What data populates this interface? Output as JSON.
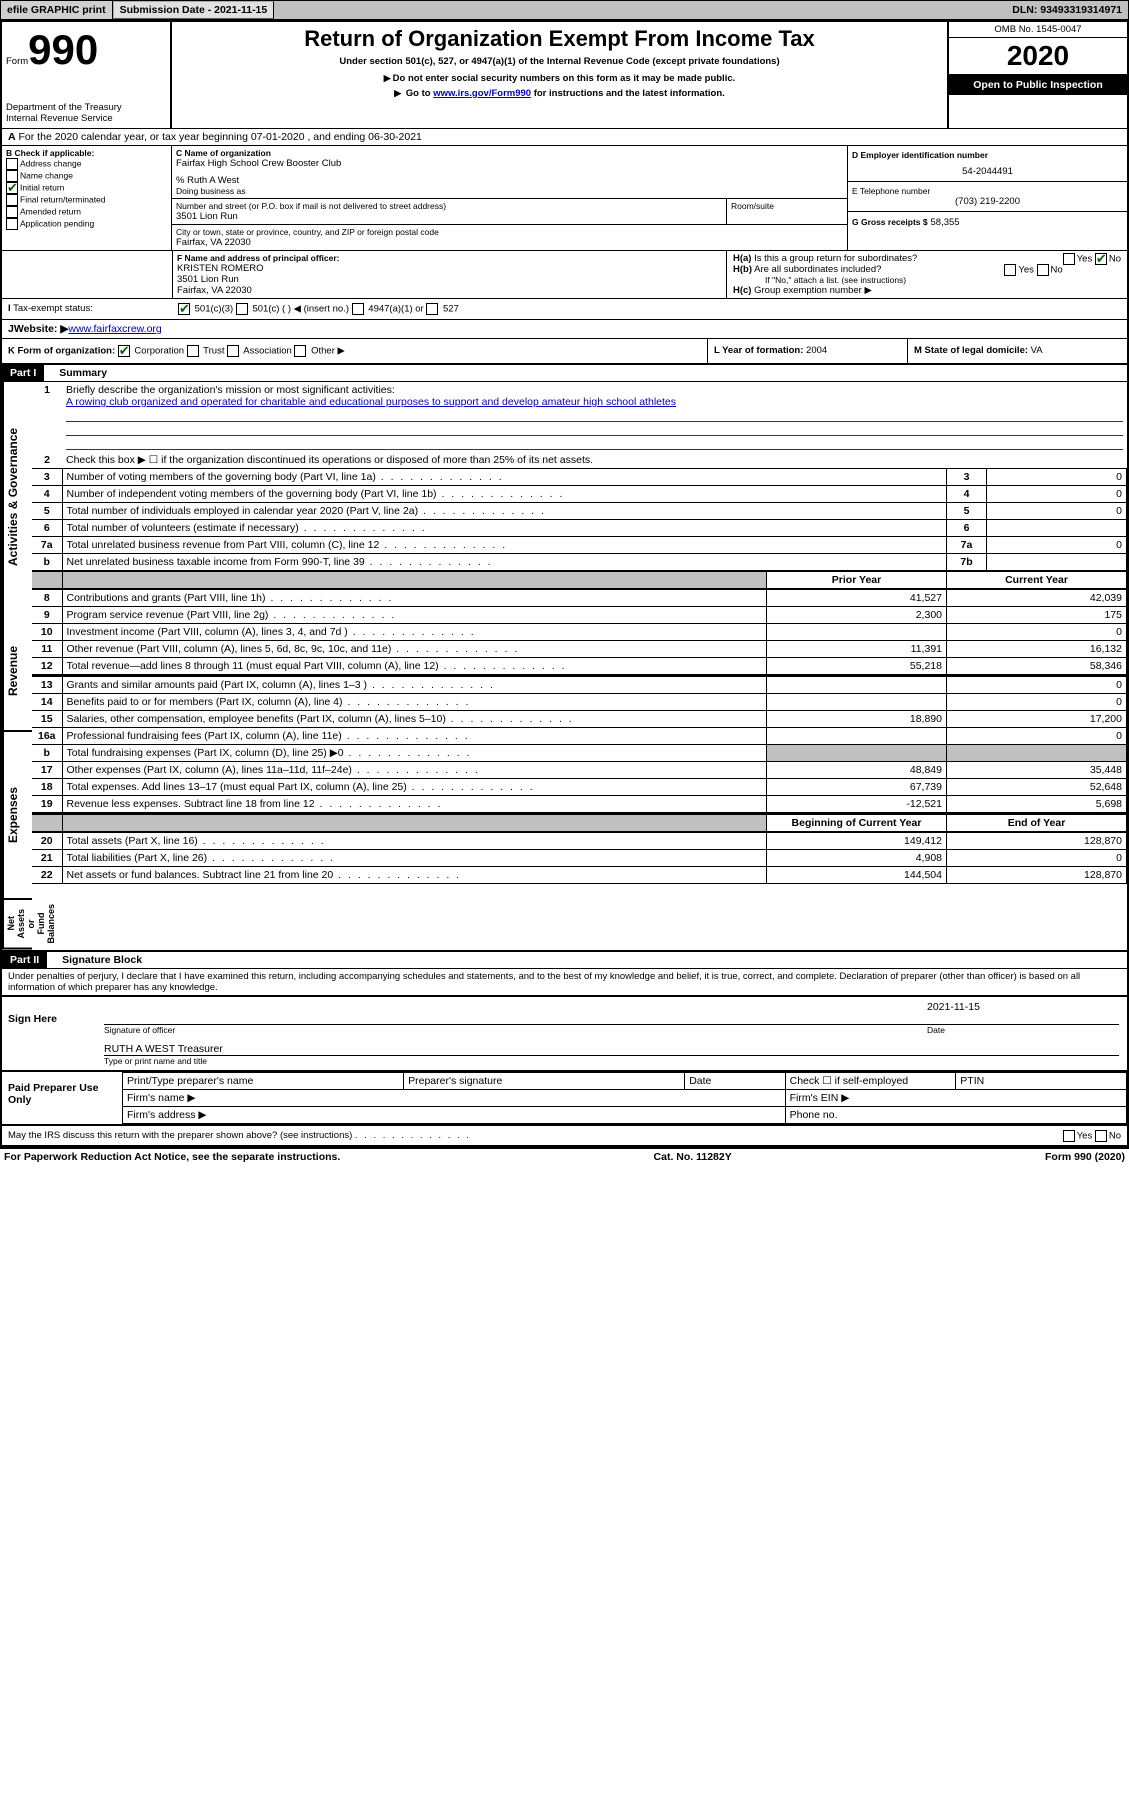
{
  "header_bar": {
    "efile": "efile GRAPHIC print",
    "submission_label": "Submission Date - 2021-11-15",
    "dln": "DLN: 93493319314971"
  },
  "top": {
    "form_word": "Form",
    "form_number": "990",
    "dept": "Department of the Treasury\nInternal Revenue Service",
    "title": "Return of Organization Exempt From Income Tax",
    "subtitle": "Under section 501(c), 527, or 4947(a)(1) of the Internal Revenue Code (except private foundations)",
    "warn": "Do not enter social security numbers on this form as it may be made public.",
    "goto": "Go to ",
    "goto_link": "www.irs.gov/Form990",
    "goto_rest": " for instructions and the latest information.",
    "omb": "OMB No. 1545-0047",
    "year": "2020",
    "open": "Open to Public Inspection"
  },
  "line_a": "For the 2020 calendar year, or tax year beginning 07-01-2020   , and ending 06-30-2021",
  "box_b": {
    "title": "B Check if applicable:",
    "opts": [
      "Address change",
      "Name change",
      "Initial return",
      "Final return/terminated",
      "Amended return",
      "Application pending"
    ],
    "checked_index": 2
  },
  "box_c": {
    "label_name": "C Name of organization",
    "org_name": "Fairfax High School Crew Booster Club",
    "care_of": "% Ruth A West",
    "dba_label": "Doing business as",
    "addr_label": "Number and street (or P.O. box if mail is not delivered to street address)",
    "room_label": "Room/suite",
    "street": "3501 Lion Run",
    "city_label": "City or town, state or province, country, and ZIP or foreign postal code",
    "city": "Fairfax, VA  22030"
  },
  "box_d": {
    "label": "D Employer identification number",
    "value": "54-2044491"
  },
  "box_e": {
    "label": "E Telephone number",
    "value": "(703) 219-2200"
  },
  "box_g": {
    "label": "G Gross receipts $",
    "value": "58,355"
  },
  "box_f": {
    "label": "F  Name and address of principal officer:",
    "name": "KRISTEN ROMERO",
    "street": "3501 Lion Run",
    "city": "Fairfax, VA  22030"
  },
  "box_h": {
    "a": "Is this a group return for subordinates?",
    "b": "Are all subordinates included?",
    "b_note": "If \"No,\" attach a list. (see instructions)",
    "c": "Group exemption number",
    "a_ans": "No"
  },
  "line_i": {
    "label": "Tax-exempt status:",
    "opts": [
      "501(c)(3)",
      "501(c) (  ) ◀ (insert no.)",
      "4947(a)(1) or",
      "527"
    ]
  },
  "line_j": {
    "label": "Website: ▶",
    "value": "www.fairfaxcrew.org"
  },
  "line_k": {
    "label": "K Form of organization:",
    "opts": [
      "Corporation",
      "Trust",
      "Association",
      "Other ▶"
    ]
  },
  "line_l": {
    "label": "L Year of formation:",
    "value": "2004"
  },
  "line_m": {
    "label": "M State of legal domicile:",
    "value": "VA"
  },
  "part1": {
    "header": "Part I",
    "title": "Summary"
  },
  "summary": {
    "q1_label": "Briefly describe the organization's mission or most significant activities:",
    "q1_text": "A rowing club organized and operated for charitable and educational purposes to support and develop amateur high school athletes",
    "q2": "Check this box ▶ ☐  if the organization discontinued its operations or disposed of more than 25% of its net assets.",
    "rows_top": [
      {
        "n": "3",
        "t": "Number of voting members of the governing body (Part VI, line 1a)",
        "box": "3",
        "v": "0"
      },
      {
        "n": "4",
        "t": "Number of independent voting members of the governing body (Part VI, line 1b)",
        "box": "4",
        "v": "0"
      },
      {
        "n": "5",
        "t": "Total number of individuals employed in calendar year 2020 (Part V, line 2a)",
        "box": "5",
        "v": "0"
      },
      {
        "n": "6",
        "t": "Total number of volunteers (estimate if necessary)",
        "box": "6",
        "v": ""
      },
      {
        "n": "7a",
        "t": "Total unrelated business revenue from Part VIII, column (C), line 12",
        "box": "7a",
        "v": "0"
      },
      {
        "n": "b",
        "t": "Net unrelated business taxable income from Form 990-T, line 39",
        "box": "7b",
        "v": ""
      }
    ],
    "col_headers": {
      "prior": "Prior Year",
      "current": "Current Year",
      "begin": "Beginning of Current Year",
      "end": "End of Year"
    },
    "revenue": [
      {
        "n": "8",
        "t": "Contributions and grants (Part VIII, line 1h)",
        "p": "41,527",
        "c": "42,039"
      },
      {
        "n": "9",
        "t": "Program service revenue (Part VIII, line 2g)",
        "p": "2,300",
        "c": "175"
      },
      {
        "n": "10",
        "t": "Investment income (Part VIII, column (A), lines 3, 4, and 7d )",
        "p": "",
        "c": "0"
      },
      {
        "n": "11",
        "t": "Other revenue (Part VIII, column (A), lines 5, 6d, 8c, 9c, 10c, and 11e)",
        "p": "11,391",
        "c": "16,132"
      },
      {
        "n": "12",
        "t": "Total revenue—add lines 8 through 11 (must equal Part VIII, column (A), line 12)",
        "p": "55,218",
        "c": "58,346"
      }
    ],
    "expenses": [
      {
        "n": "13",
        "t": "Grants and similar amounts paid (Part IX, column (A), lines 1–3 )",
        "p": "",
        "c": "0"
      },
      {
        "n": "14",
        "t": "Benefits paid to or for members (Part IX, column (A), line 4)",
        "p": "",
        "c": "0"
      },
      {
        "n": "15",
        "t": "Salaries, other compensation, employee benefits (Part IX, column (A), lines 5–10)",
        "p": "18,890",
        "c": "17,200"
      },
      {
        "n": "16a",
        "t": "Professional fundraising fees (Part IX, column (A), line 11e)",
        "p": "",
        "c": "0"
      },
      {
        "n": "b",
        "t": "Total fundraising expenses (Part IX, column (D), line 25) ▶0",
        "p": "SHADE",
        "c": "SHADE"
      },
      {
        "n": "17",
        "t": "Other expenses (Part IX, column (A), lines 11a–11d, 11f–24e)",
        "p": "48,849",
        "c": "35,448"
      },
      {
        "n": "18",
        "t": "Total expenses. Add lines 13–17 (must equal Part IX, column (A), line 25)",
        "p": "67,739",
        "c": "52,648"
      },
      {
        "n": "19",
        "t": "Revenue less expenses. Subtract line 18 from line 12",
        "p": "-12,521",
        "c": "5,698"
      }
    ],
    "netassets": [
      {
        "n": "20",
        "t": "Total assets (Part X, line 16)",
        "p": "149,412",
        "c": "128,870"
      },
      {
        "n": "21",
        "t": "Total liabilities (Part X, line 26)",
        "p": "4,908",
        "c": "0"
      },
      {
        "n": "22",
        "t": "Net assets or fund balances. Subtract line 21 from line 20",
        "p": "144,504",
        "c": "128,870"
      }
    ]
  },
  "vlabels": {
    "gov": "Activities & Governance",
    "rev": "Revenue",
    "exp": "Expenses",
    "net": "Net Assets or\nFund Balances"
  },
  "part2": {
    "header": "Part II",
    "title": "Signature Block"
  },
  "sig": {
    "declare": "Under penalties of perjury, I declare that I have examined this return, including accompanying schedules and statements, and to the best of my knowledge and belief, it is true, correct, and complete. Declaration of preparer (other than officer) is based on all information of which preparer has any knowledge.",
    "sign_here": "Sign Here",
    "sig_officer": "Signature of officer",
    "date_label": "Date",
    "date_value": "2021-11-15",
    "officer_name": "RUTH A WEST Treasurer",
    "type_label": "Type or print name and title",
    "paid": "Paid Preparer Use Only",
    "p_name": "Print/Type preparer's name",
    "p_sig": "Preparer's signature",
    "p_date": "Date",
    "p_check": "Check ☐ if self-employed",
    "p_ptin": "PTIN",
    "firm_name": "Firm's name  ▶",
    "firm_ein": "Firm's EIN ▶",
    "firm_addr": "Firm's address ▶",
    "phone": "Phone no.",
    "discuss": "May the IRS discuss this return with the preparer shown above? (see instructions)"
  },
  "footer": {
    "left": "For Paperwork Reduction Act Notice, see the separate instructions.",
    "mid": "Cat. No. 11282Y",
    "right": "Form 990 (2020)"
  }
}
